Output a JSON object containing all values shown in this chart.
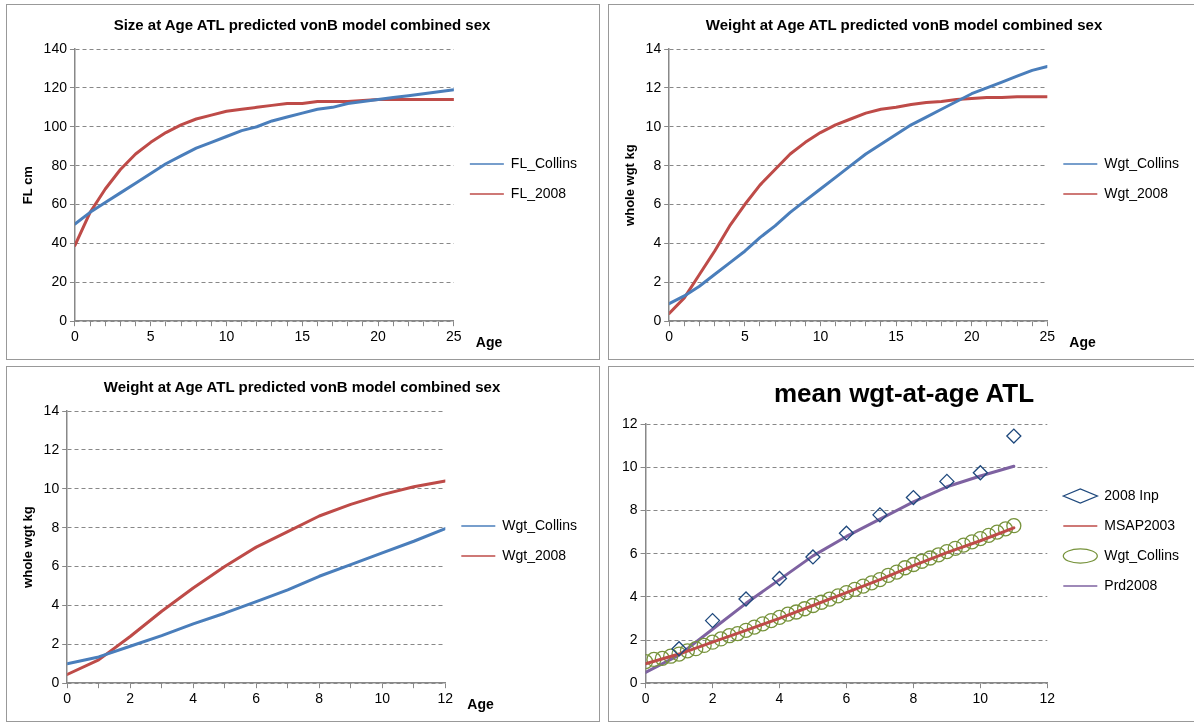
{
  "chart_data": [
    {
      "type": "line",
      "title": "Size at Age ATL predicted vonB model combined sex",
      "xlabel": "Age",
      "ylabel": "FL cm",
      "legend": "right",
      "grid": "y",
      "line_style": "solid",
      "marker": "none",
      "x": [
        0,
        1,
        2,
        3,
        4,
        5,
        6,
        7,
        8,
        9,
        10,
        11,
        12,
        13,
        14,
        15,
        16,
        17,
        18,
        19,
        20,
        21,
        22,
        23,
        24,
        25
      ],
      "xlim": [
        0,
        25
      ],
      "xticks": [
        0,
        {
          "value": 1,
          "label": null
        },
        {
          "value": 2,
          "label": null
        },
        {
          "value": 3,
          "label": null
        },
        {
          "value": 4,
          "label": null
        },
        5,
        {
          "value": 6,
          "label": null
        },
        {
          "value": 7,
          "label": null
        },
        {
          "value": 8,
          "label": null
        },
        {
          "value": 9,
          "label": null
        },
        10,
        {
          "value": 11,
          "label": null
        },
        {
          "value": 12,
          "label": null
        },
        {
          "value": 13,
          "label": null
        },
        {
          "value": 14,
          "label": null
        },
        15,
        {
          "value": 16,
          "label": null
        },
        {
          "value": 17,
          "label": null
        },
        {
          "value": 18,
          "label": null
        },
        {
          "value": 19,
          "label": null
        },
        20,
        {
          "value": 21,
          "label": null
        },
        {
          "value": 22,
          "label": null
        },
        {
          "value": 23,
          "label": null
        },
        {
          "value": 24,
          "label": null
        },
        25
      ],
      "ylim": [
        0,
        140
      ],
      "yticks": [
        0,
        20,
        40,
        60,
        80,
        100,
        120,
        140
      ],
      "series": [
        {
          "name": "FL_Collins",
          "color": "#4a7ebb",
          "values": [
            50,
            56,
            61,
            66,
            71,
            76,
            81,
            85,
            89,
            92,
            95,
            98,
            100,
            103,
            105,
            107,
            109,
            110,
            112,
            113,
            114,
            115,
            116,
            117,
            118,
            119
          ]
        },
        {
          "name": "FL_2008",
          "color": "#be4b48",
          "values": [
            39,
            56,
            68,
            78,
            86,
            92,
            97,
            101,
            104,
            106,
            108,
            109,
            110,
            111,
            112,
            112,
            113,
            113,
            113,
            113.5,
            114,
            114,
            114,
            114,
            114,
            114
          ]
        }
      ]
    },
    {
      "type": "line",
      "title": "Weight at Age ATL predicted vonB model combined sex",
      "xlabel": "Age",
      "ylabel": "whole wgt kg",
      "legend": "right",
      "grid": "y",
      "line_style": "solid",
      "marker": "none",
      "x": [
        0,
        1,
        2,
        3,
        4,
        5,
        6,
        7,
        8,
        9,
        10,
        11,
        12,
        13,
        14,
        15,
        16,
        17,
        18,
        19,
        20,
        21,
        22,
        23,
        24,
        25
      ],
      "xlim": [
        0,
        25
      ],
      "xticks": [
        0,
        {
          "value": 1,
          "label": null
        },
        {
          "value": 2,
          "label": null
        },
        {
          "value": 3,
          "label": null
        },
        {
          "value": 4,
          "label": null
        },
        5,
        {
          "value": 6,
          "label": null
        },
        {
          "value": 7,
          "label": null
        },
        {
          "value": 8,
          "label": null
        },
        {
          "value": 9,
          "label": null
        },
        10,
        {
          "value": 11,
          "label": null
        },
        {
          "value": 12,
          "label": null
        },
        {
          "value": 13,
          "label": null
        },
        {
          "value": 14,
          "label": null
        },
        15,
        {
          "value": 16,
          "label": null
        },
        {
          "value": 17,
          "label": null
        },
        {
          "value": 18,
          "label": null
        },
        {
          "value": 19,
          "label": null
        },
        20,
        {
          "value": 21,
          "label": null
        },
        {
          "value": 22,
          "label": null
        },
        {
          "value": 23,
          "label": null
        },
        {
          "value": 24,
          "label": null
        },
        25
      ],
      "ylim": [
        0,
        14
      ],
      "yticks": [
        0,
        2,
        4,
        6,
        8,
        10,
        12,
        14
      ],
      "series": [
        {
          "name": "Wgt_Collins",
          "color": "#4a7ebb",
          "values": [
            0.9,
            1.3,
            1.8,
            2.4,
            3.0,
            3.6,
            4.3,
            4.9,
            5.6,
            6.2,
            6.8,
            7.4,
            8.0,
            8.6,
            9.1,
            9.6,
            10.1,
            10.5,
            10.9,
            11.3,
            11.7,
            12.0,
            12.3,
            12.6,
            12.9,
            13.1
          ]
        },
        {
          "name": "Wgt_2008",
          "color": "#be4b48",
          "values": [
            0.4,
            1.2,
            2.4,
            3.6,
            4.9,
            6.0,
            7.0,
            7.8,
            8.6,
            9.2,
            9.7,
            10.1,
            10.4,
            10.7,
            10.9,
            11.0,
            11.15,
            11.25,
            11.3,
            11.4,
            11.45,
            11.5,
            11.5,
            11.55,
            11.55,
            11.55
          ]
        }
      ]
    },
    {
      "type": "line",
      "title": "Weight at Age ATL predicted vonB model combined sex",
      "xlabel": "Age",
      "ylabel": "whole wgt kg",
      "legend": "right",
      "grid": "y",
      "line_style": "solid",
      "marker": "none",
      "x": [
        0,
        1,
        2,
        3,
        4,
        5,
        6,
        7,
        8,
        9,
        10,
        11,
        12
      ],
      "xlim": [
        0,
        12
      ],
      "xticks": [
        0,
        {
          "value": 1,
          "label": null
        },
        2,
        {
          "value": 3,
          "label": null
        },
        4,
        {
          "value": 5,
          "label": null
        },
        6,
        {
          "value": 7,
          "label": null
        },
        8,
        {
          "value": 9,
          "label": null
        },
        10,
        {
          "value": 11,
          "label": null
        },
        12
      ],
      "ylim": [
        0,
        14
      ],
      "yticks": [
        0,
        2,
        4,
        6,
        8,
        10,
        12,
        14
      ],
      "series": [
        {
          "name": "Wgt_Collins",
          "color": "#4a7ebb",
          "values": [
            1.0,
            1.35,
            1.9,
            2.45,
            3.05,
            3.6,
            4.2,
            4.8,
            5.5,
            6.1,
            6.7,
            7.3,
            7.95
          ]
        },
        {
          "name": "Wgt_2008",
          "color": "#be4b48",
          "values": [
            0.45,
            1.2,
            2.4,
            3.7,
            4.9,
            6.0,
            7.0,
            7.8,
            8.6,
            9.2,
            9.7,
            10.1,
            10.4
          ]
        }
      ]
    },
    {
      "type": "line",
      "title": "mean wgt-at-age ATL",
      "legend": "right",
      "grid": "y",
      "line_style": "solid",
      "xlim": [
        0,
        12
      ],
      "xticks": [
        0,
        2,
        4,
        6,
        8,
        10,
        12
      ],
      "ylim": [
        0,
        12
      ],
      "yticks": [
        0,
        2,
        4,
        6,
        8,
        10,
        12
      ],
      "series": [
        {
          "name": "2008 Inp",
          "type": "scatter",
          "marker": "diamond",
          "color": "#1f497d",
          "x": [
            1,
            2,
            3,
            4,
            5,
            6,
            7,
            8,
            9,
            10,
            11
          ],
          "values": [
            1.6,
            2.9,
            3.9,
            4.85,
            5.85,
            6.95,
            7.8,
            8.6,
            9.35,
            9.75,
            11.45
          ]
        },
        {
          "name": "MSAP2003",
          "marker": "none",
          "color": "#be4b48",
          "x": [
            0,
            1,
            2,
            3,
            4,
            5,
            6,
            7,
            8,
            9,
            10,
            11
          ],
          "values": [
            0.9,
            1.35,
            1.9,
            2.45,
            3.0,
            3.6,
            4.2,
            4.8,
            5.45,
            6.05,
            6.6,
            7.2
          ]
        },
        {
          "name": "Wgt_Collins",
          "type": "scatter",
          "marker": "circle",
          "color": "#77933c",
          "x": [
            0,
            0.25,
            0.5,
            0.75,
            1,
            1.25,
            1.5,
            1.75,
            2,
            2.25,
            2.5,
            2.75,
            3,
            3.25,
            3.5,
            3.75,
            4,
            4.25,
            4.5,
            4.75,
            5,
            5.25,
            5.5,
            5.75,
            6,
            6.25,
            6.5,
            6.75,
            7,
            7.25,
            7.5,
            7.75,
            8,
            8.25,
            8.5,
            8.75,
            9,
            9.25,
            9.5,
            9.75,
            10,
            10.25,
            10.5,
            10.75,
            11
          ],
          "values": [
            1.0,
            1.1,
            1.15,
            1.25,
            1.35,
            1.5,
            1.6,
            1.75,
            1.9,
            2.05,
            2.2,
            2.3,
            2.45,
            2.6,
            2.75,
            2.9,
            3.05,
            3.2,
            3.3,
            3.45,
            3.6,
            3.75,
            3.9,
            4.05,
            4.2,
            4.35,
            4.5,
            4.65,
            4.8,
            5.0,
            5.15,
            5.35,
            5.5,
            5.65,
            5.8,
            5.95,
            6.1,
            6.25,
            6.4,
            6.55,
            6.7,
            6.85,
            7.0,
            7.15,
            7.3
          ]
        },
        {
          "name": "Prd2008",
          "marker": "none",
          "color": "#7e62a1",
          "x": [
            0,
            1,
            2,
            3,
            4,
            5,
            6,
            7,
            8,
            9,
            10,
            11
          ],
          "values": [
            0.5,
            1.3,
            2.5,
            3.7,
            4.8,
            5.9,
            6.8,
            7.6,
            8.4,
            9.1,
            9.6,
            10.05
          ]
        }
      ]
    }
  ]
}
